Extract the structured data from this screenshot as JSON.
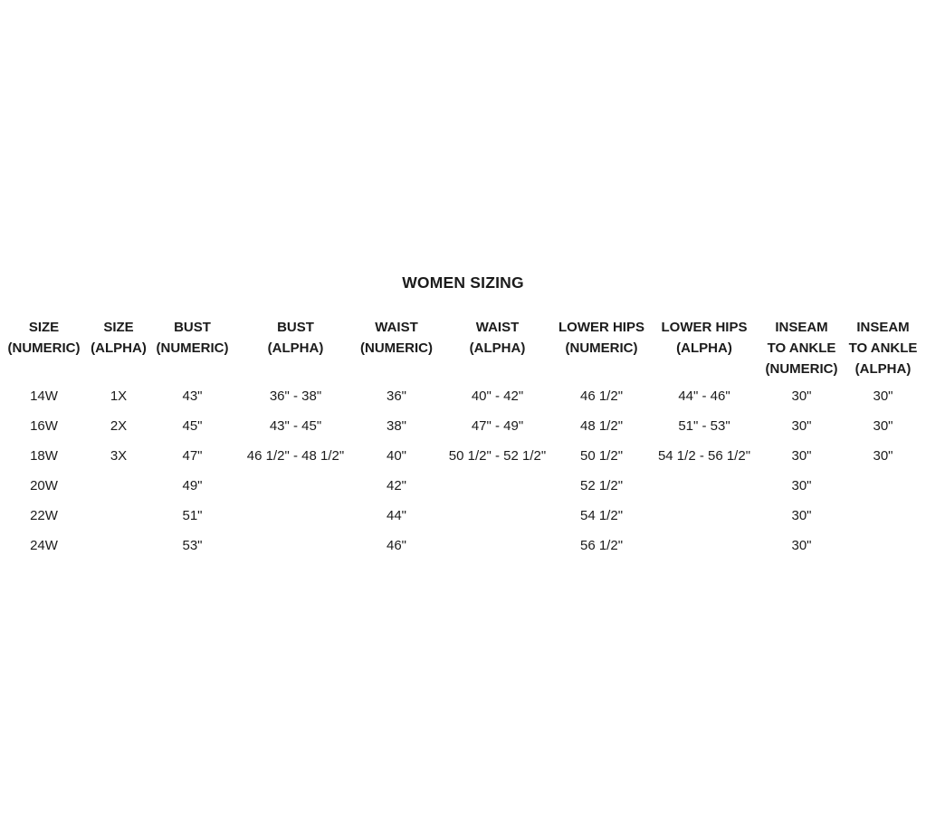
{
  "page": {
    "background_color": "#ffffff",
    "text_color": "#1b1b1b"
  },
  "chart_data": {
    "type": "table",
    "title": "WOMEN SIZING",
    "columns": [
      {
        "id": "size-numeric",
        "label_lines": [
          "SIZE",
          "(NUMERIC)"
        ]
      },
      {
        "id": "size-alpha",
        "label_lines": [
          "SIZE",
          "(ALPHA)"
        ]
      },
      {
        "id": "bust-numeric",
        "label_lines": [
          "BUST",
          "(NUMERIC)"
        ]
      },
      {
        "id": "bust-alpha",
        "label_lines": [
          "BUST",
          "(ALPHA)"
        ]
      },
      {
        "id": "waist-numeric",
        "label_lines": [
          "WAIST",
          "(NUMERIC)"
        ]
      },
      {
        "id": "waist-alpha",
        "label_lines": [
          "WAIST",
          "(ALPHA)"
        ]
      },
      {
        "id": "lower-hips-numeric",
        "label_lines": [
          "LOWER HIPS",
          "(NUMERIC)"
        ]
      },
      {
        "id": "lower-hips-alpha",
        "label_lines": [
          "LOWER HIPS",
          "(ALPHA)"
        ]
      },
      {
        "id": "inseam-to-ankle-numeric",
        "label_lines": [
          "INSEAM",
          "TO ANKLE",
          "(NUMERIC)"
        ]
      },
      {
        "id": "inseam-to-ankle-alpha",
        "label_lines": [
          "INSEAM",
          "TO ANKLE",
          "(ALPHA)"
        ]
      }
    ],
    "rows": [
      [
        "14W",
        "1X",
        "43\"",
        "36\" - 38\"",
        "36\"",
        "40\" - 42\"",
        "46 1/2\"",
        "44\" - 46\"",
        "30\"",
        "30\""
      ],
      [
        "16W",
        "2X",
        "45\"",
        "43\" - 45\"",
        "38\"",
        "47\" - 49\"",
        "48 1/2\"",
        "51\" - 53\"",
        "30\"",
        "30\""
      ],
      [
        "18W",
        "3X",
        "47\"",
        "46 1/2\" - 48 1/2\"",
        "40\"",
        "50 1/2\" - 52 1/2\"",
        "50 1/2\"",
        "54 1/2 - 56 1/2\"",
        "30\"",
        "30\""
      ],
      [
        "20W",
        "",
        "49\"",
        "",
        "42\"",
        "",
        "52 1/2\"",
        "",
        "30\"",
        ""
      ],
      [
        "22W",
        "",
        "51\"",
        "",
        "44\"",
        "",
        "54 1/2\"",
        "",
        "30\"",
        ""
      ],
      [
        "24W",
        "",
        "53\"",
        "",
        "46\"",
        "",
        "56 1/2\"",
        "",
        "30\"",
        ""
      ]
    ]
  }
}
